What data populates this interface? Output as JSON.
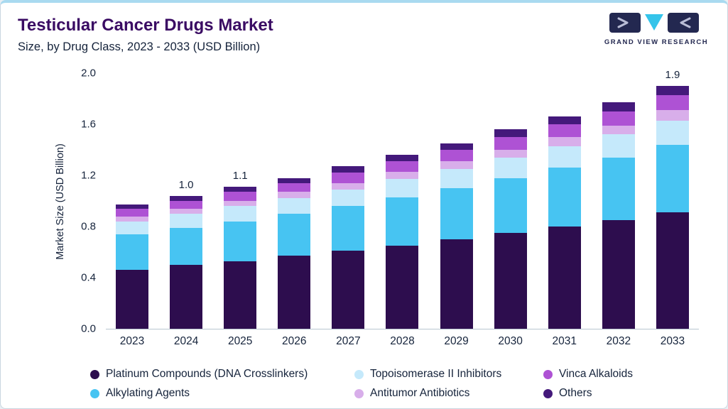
{
  "header": {
    "title": "Testicular Cancer Drugs Market",
    "subtitle": "Size, by Drug Class, 2023 - 2033 (USD Billion)",
    "logo_text": "GRAND VIEW RESEARCH"
  },
  "colors": {
    "accent_top_bar": "#a9daf0",
    "title": "#3a0b63",
    "logo_navy": "#232850",
    "logo_cyan": "#35c4ea",
    "axis_text": "#15233b"
  },
  "chart_data": {
    "type": "bar",
    "stacked": true,
    "title": "Testicular Cancer Drugs Market Size, by Drug Class, 2023 - 2033 (USD Billion)",
    "xlabel": "",
    "ylabel": "Market Size (USD Billion)",
    "ylim": [
      0,
      2.0
    ],
    "yticks": [
      0.0,
      0.4,
      0.8,
      1.2,
      1.6,
      2.0
    ],
    "grid": false,
    "legend_position": "bottom",
    "categories": [
      "2023",
      "2024",
      "2025",
      "2026",
      "2027",
      "2028",
      "2029",
      "2030",
      "2031",
      "2032",
      "2033"
    ],
    "series": [
      {
        "name": "Platinum Compounds (DNA Crosslinkers)",
        "color": "#2d0d4e",
        "values": [
          0.46,
          0.5,
          0.53,
          0.57,
          0.61,
          0.65,
          0.7,
          0.75,
          0.8,
          0.85,
          0.91
        ]
      },
      {
        "name": "Alkylating Agents",
        "color": "#47c4f2",
        "values": [
          0.28,
          0.29,
          0.31,
          0.33,
          0.35,
          0.38,
          0.4,
          0.43,
          0.46,
          0.49,
          0.53
        ]
      },
      {
        "name": "Topoisomerase II Inhibitors",
        "color": "#c5e9fb",
        "values": [
          0.1,
          0.11,
          0.12,
          0.12,
          0.13,
          0.14,
          0.15,
          0.16,
          0.17,
          0.18,
          0.19
        ]
      },
      {
        "name": "Antitumor Antibiotics",
        "color": "#d8aeea",
        "values": [
          0.04,
          0.04,
          0.04,
          0.05,
          0.05,
          0.06,
          0.06,
          0.06,
          0.07,
          0.07,
          0.08
        ]
      },
      {
        "name": "Vinca Alkaloids",
        "color": "#ae52d4",
        "values": [
          0.06,
          0.06,
          0.07,
          0.07,
          0.08,
          0.08,
          0.09,
          0.1,
          0.1,
          0.11,
          0.12
        ]
      },
      {
        "name": "Others",
        "color": "#44197b",
        "values": [
          0.03,
          0.04,
          0.04,
          0.04,
          0.05,
          0.05,
          0.05,
          0.06,
          0.06,
          0.07,
          0.07
        ]
      }
    ],
    "total_labels": {
      "2024": "1.0",
      "2025": "1.1",
      "2033": "1.9"
    }
  },
  "legend": {
    "items": [
      {
        "label": "Platinum Compounds (DNA Crosslinkers)",
        "color": "#2d0d4e"
      },
      {
        "label": "Topoisomerase II Inhibitors",
        "color": "#c5e9fb"
      },
      {
        "label": "Vinca Alkaloids",
        "color": "#ae52d4"
      },
      {
        "label": "Alkylating Agents",
        "color": "#47c4f2"
      },
      {
        "label": "Antitumor Antibiotics",
        "color": "#d8aeea"
      },
      {
        "label": "Others",
        "color": "#44197b"
      }
    ]
  }
}
